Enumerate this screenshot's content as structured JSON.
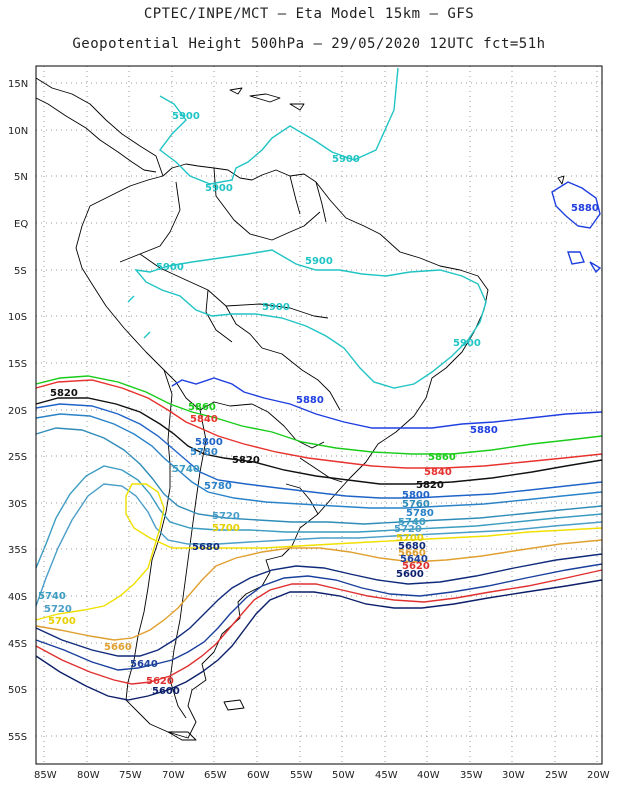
{
  "header": {
    "line1": "CPTEC/INPE/MCT –  Eta Model 15km – GFS",
    "line2": "Geopotential Height 500hPa – 29/05/2020 12UTC fct=51h"
  },
  "axes": {
    "lat_labels": [
      "15N",
      "10N",
      "5N",
      "EQ",
      "5S",
      "10S",
      "15S",
      "20S",
      "25S",
      "30S",
      "35S",
      "40S",
      "45S",
      "50S",
      "55S"
    ],
    "lon_labels": [
      "85W",
      "80W",
      "75W",
      "70W",
      "65W",
      "60W",
      "55W",
      "50W",
      "45W",
      "40W",
      "35W",
      "30W",
      "25W",
      "20W"
    ]
  },
  "colors": {
    "c5900": "#20c4c4",
    "c5880": "#1f3fe0",
    "c5860": "#19cc19",
    "c5840": "#e8322e",
    "c5820": "#111111",
    "c5800": "#1e64c8",
    "c5780": "#2a82c8",
    "c5760": "#2f8cb8",
    "c5740": "#3a9cc0",
    "c5720": "#4a9ec8",
    "c5700": "#f0e000",
    "c5680": "#e0a030",
    "c5660": "#102a7a",
    "c5640": "#1a3f9c",
    "c5620": "#e03030",
    "c5600": "#0c1f6a",
    "coast": "#000000"
  },
  "contour_labels": {
    "l5900a": "5900",
    "l5900b": "5900",
    "l5900c": "5900",
    "l5900d": "5900",
    "l5900e": "5900",
    "l5900f": "5900",
    "l5900g": "5900",
    "l5880a": "5880",
    "l5880b": "5880",
    "l5880c": "5880",
    "l5860a": "5860",
    "l5860b": "5860",
    "l5840a": "5840",
    "l5840b": "5840",
    "l5820a": "5820",
    "l5820b": "5820",
    "l5820c": "5820",
    "l5800a": "5800",
    "l5800b": "5800",
    "l5780a": "5780",
    "l5780b": "5780",
    "l5780c": "5780",
    "l5760": "5760",
    "l5740a": "5740",
    "l5740b": "5740",
    "l5740c": "5740",
    "l5720a": "5720",
    "l5720b": "5720",
    "l5720c": "5720",
    "l5700a": "5700",
    "l5700b": "5700",
    "l5700c": "5700",
    "l5680a": "5680",
    "l5680b": "5680",
    "l5660a": "5660",
    "l5660b": "5660",
    "l5640a": "5640",
    "l5640b": "5640",
    "l5620a": "5620",
    "l5620b": "5620",
    "l5600a": "5600",
    "l5600b": "5600"
  }
}
